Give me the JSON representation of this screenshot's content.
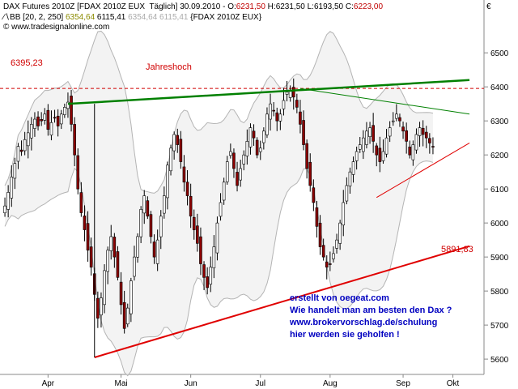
{
  "header": {
    "instrument": "DAX Futures 2010Z [FDAX 2010Z EUX  Täglich] 30.09.2010 - ",
    "ohlc": [
      {
        "label": "O:",
        "value": "6231,50",
        "color": "#c00000"
      },
      {
        "label": " H:",
        "value": "6231,50",
        "color": "#000000"
      },
      {
        "label": " L:",
        "value": "6193,50",
        "color": "#000000"
      },
      {
        "label": " C:",
        "value": "6223,00",
        "color": "#c00000"
      }
    ],
    "bb_label": "BB [20, 2, 250] ",
    "bb_values": [
      "6354,64",
      "6115,41",
      "6354,64",
      "6115,41"
    ],
    "bb_suffix": " {FDAX 2010Z EUX}",
    "copyright": "© www.tradesignalonline.com",
    "currency": "€"
  },
  "annotations": {
    "high_value": "6395,23",
    "high_label": "Jahreshoch",
    "low_trend_value": "5891,83",
    "note_lines": [
      "erstellt von oegeat.com",
      "Wie handelt man am besten den Dax ?",
      "www.brokervorschlag.de/schulung",
      "hier werden sie geholfen !"
    ]
  },
  "colors": {
    "up_candle": "#ffffff",
    "down_candle": "#8b0000",
    "band": "#b4b4b4",
    "resistance": "#008000",
    "support": "#e00000",
    "high_line": "#d00000",
    "note_text": "#0000c0"
  },
  "chart_data": {
    "type": "candlestick",
    "title": "DAX Futures 2010Z [FDAX 2010Z EUX  Täglich] 30.09.2010",
    "xlabel": "",
    "ylabel": "",
    "ylim": [
      5555,
      6560
    ],
    "yticks": [
      5600,
      5700,
      5800,
      5900,
      6000,
      6100,
      6200,
      6300,
      6400,
      6500
    ],
    "ytick_labels": [
      "5600",
      "5700",
      "5800",
      "5900",
      "6000",
      "6100",
      "6200",
      "6300",
      "6400",
      "6500"
    ],
    "x_ticks": [
      {
        "label": "Apr",
        "bar": 13
      },
      {
        "label": "Mai",
        "bar": 35
      },
      {
        "label": "Jun",
        "bar": 56
      },
      {
        "label": "Jul",
        "bar": 77
      },
      {
        "label": "Aug",
        "bar": 98
      },
      {
        "label": "Sep",
        "bar": 120
      },
      {
        "label": "Okt",
        "bar": 135
      }
    ],
    "horizontal_lines": [
      {
        "name": "Jahreshoch",
        "value": 6395.23
      }
    ],
    "trendlines": [
      {
        "name": "support",
        "from": [
          27,
          5605
        ],
        "to": [
          140,
          5932
        ]
      },
      {
        "name": "resistance",
        "from": [
          19,
          6350
        ],
        "to": [
          140,
          6420
        ]
      },
      {
        "name": "down-trend",
        "from": [
          89,
          6395
        ],
        "to": [
          140,
          6320
        ]
      },
      {
        "name": "triangle-support",
        "from": [
          112,
          6075
        ],
        "to": [
          140,
          6235
        ]
      }
    ],
    "trend_end_label": "5891,83",
    "closes": [
      6050,
      6090,
      6135,
      6175,
      6225,
      6210,
      6245,
      6265,
      6290,
      6305,
      6285,
      6300,
      6320,
      6275,
      6295,
      6310,
      6285,
      6320,
      6340,
      6355,
      6290,
      6200,
      6100,
      6030,
      5980,
      5920,
      5870,
      5790,
      5720,
      5780,
      5860,
      5920,
      5960,
      5900,
      5840,
      5760,
      5690,
      5750,
      5830,
      5900,
      5960,
      6040,
      6080,
      6020,
      5960,
      5900,
      5950,
      6020,
      6080,
      6170,
      6220,
      6260,
      6230,
      6180,
      6120,
      6080,
      6020,
      5980,
      5940,
      5880,
      5840,
      5810,
      5870,
      5930,
      6000,
      6060,
      6120,
      6180,
      6210,
      6160,
      6110,
      6160,
      6200,
      6240,
      6280,
      6250,
      6200,
      6220,
      6270,
      6320,
      6350,
      6330,
      6300,
      6320,
      6360,
      6385,
      6390,
      6370,
      6340,
      6290,
      6230,
      6160,
      6110,
      6060,
      5990,
      5930,
      5900,
      5870,
      5880,
      5910,
      5950,
      6000,
      6060,
      6110,
      6150,
      6180,
      6210,
      6230,
      6250,
      6270,
      6280,
      6240,
      6200,
      6180,
      6210,
      6250,
      6280,
      6300,
      6320,
      6300,
      6270,
      6240,
      6200,
      6230,
      6260,
      6280,
      6260,
      6250,
      6235,
      6223
    ]
  }
}
